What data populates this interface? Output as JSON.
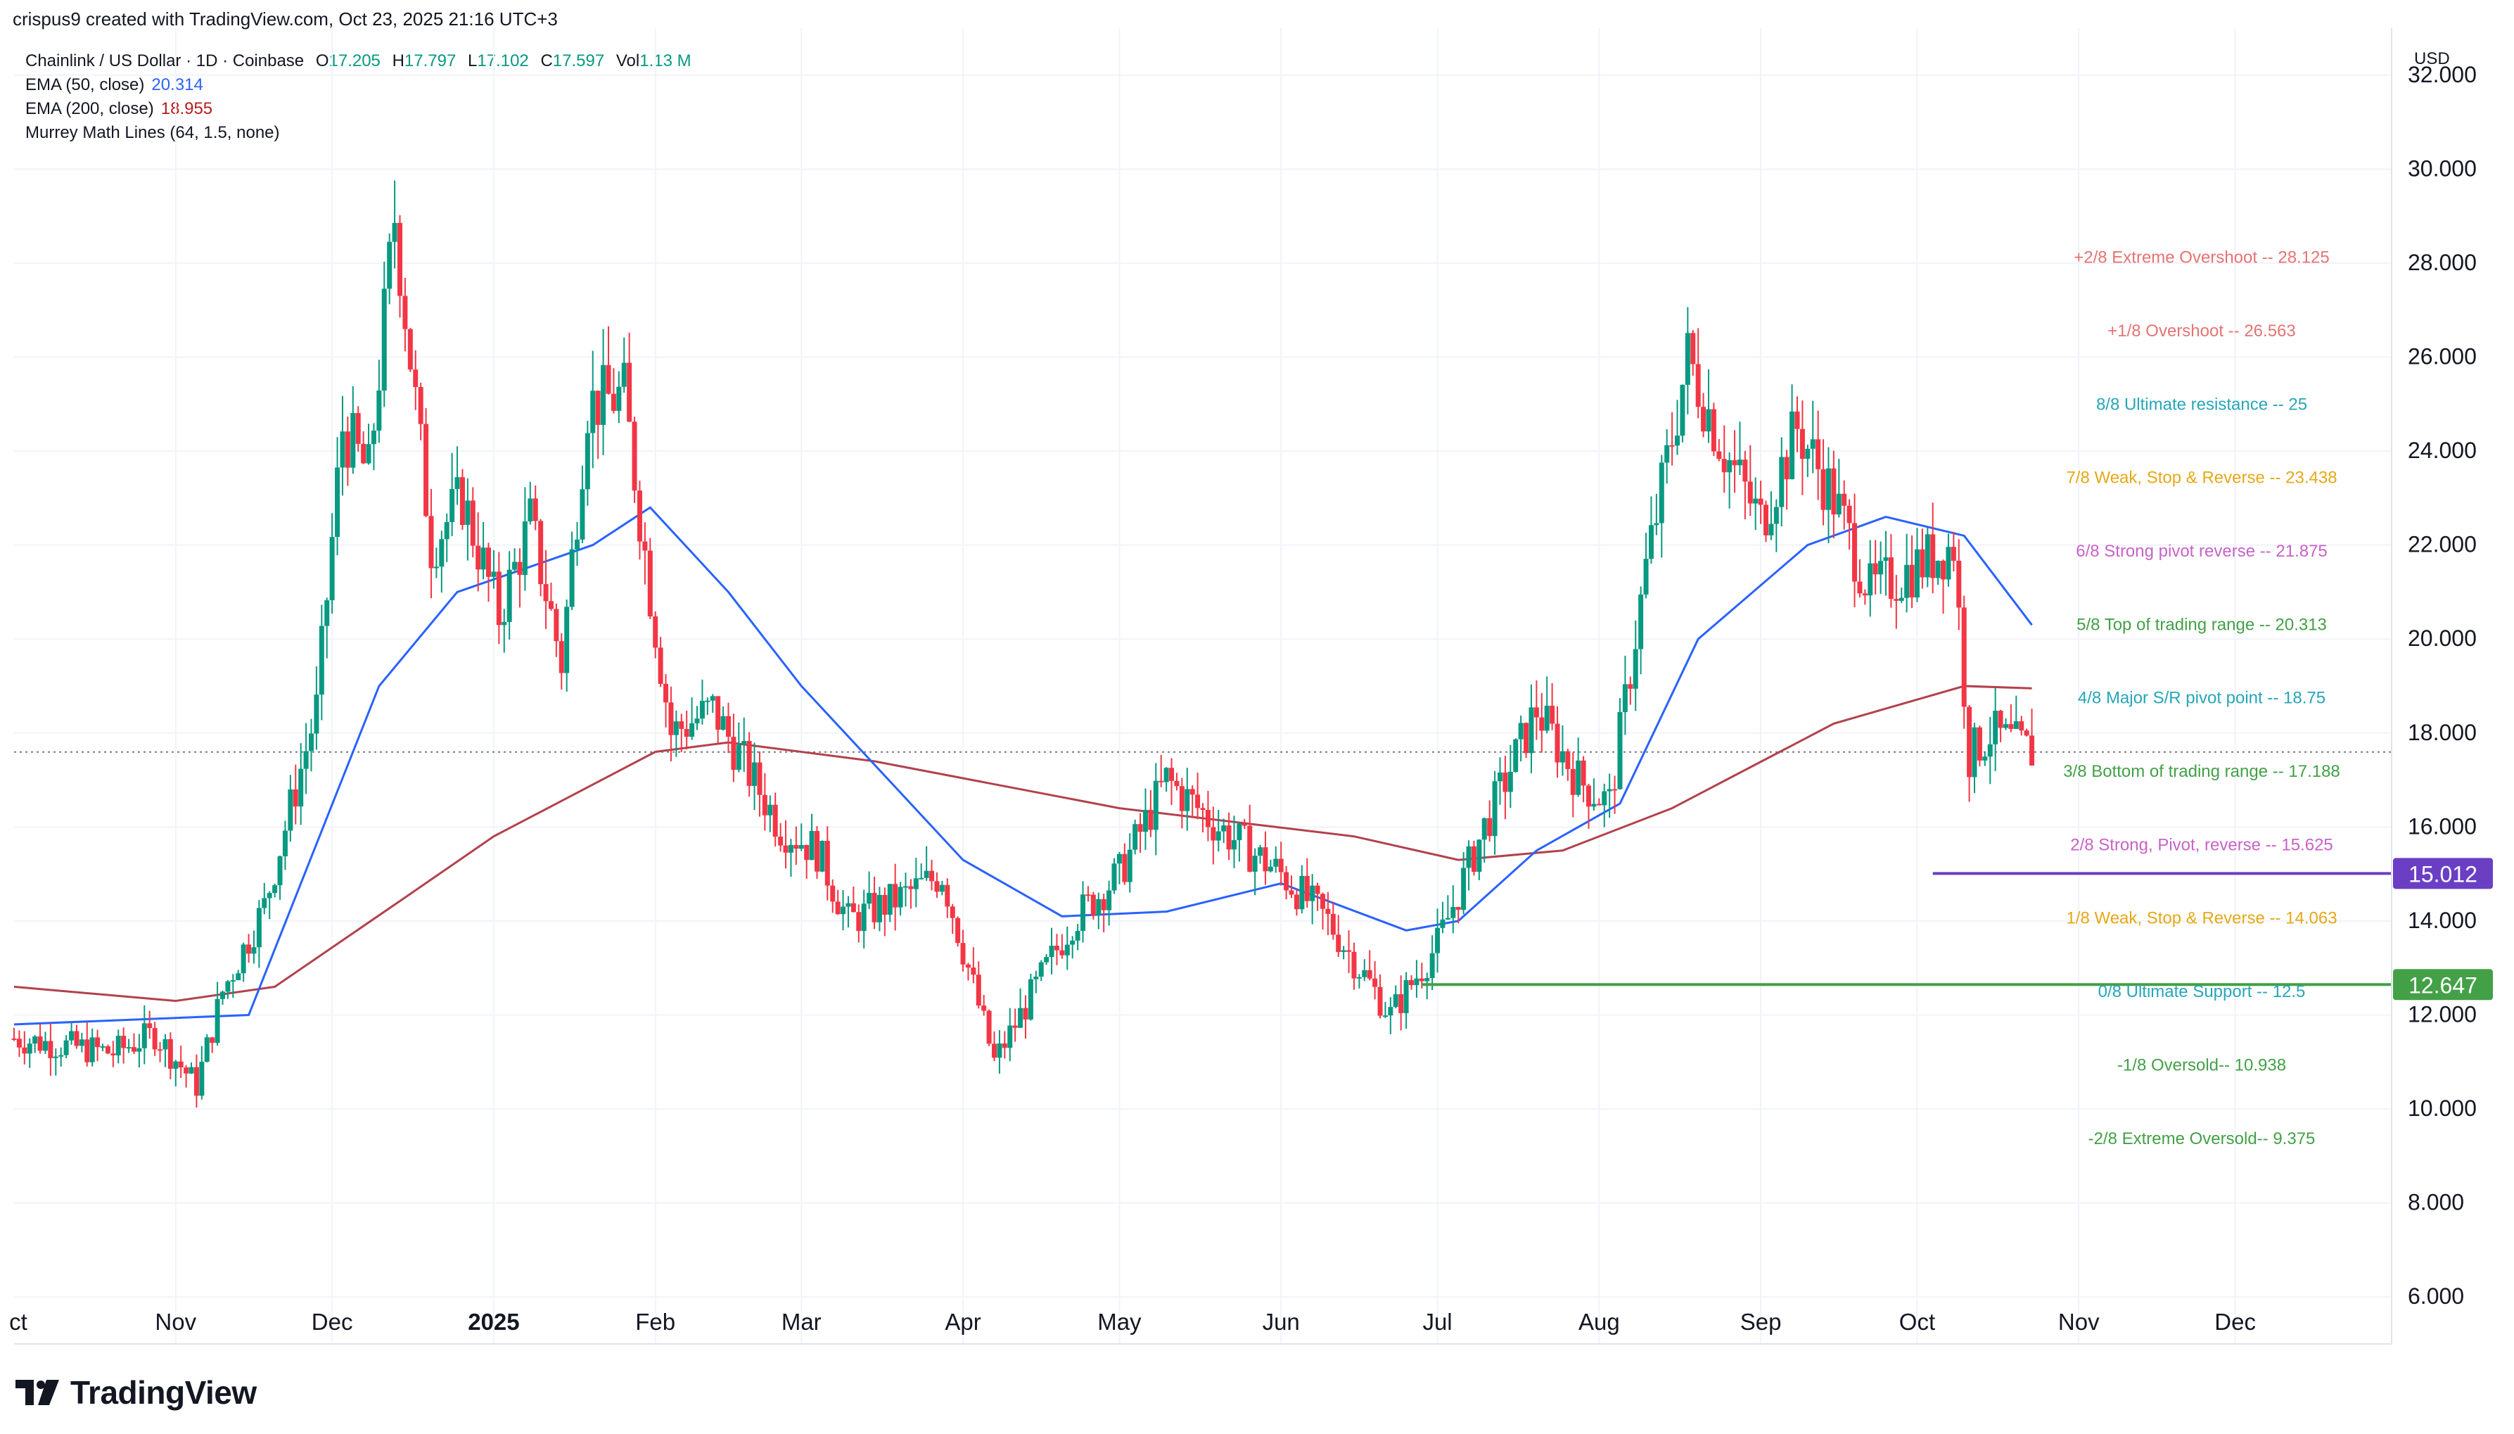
{
  "header": {
    "attribution": "crispus9 created with TradingView.com, Oct 23, 2025 21:16 UTC+3"
  },
  "legend": {
    "symbol": "Chainlink / US Dollar · 1D · Coinbase",
    "open_label": "O",
    "open": "17.205",
    "high_label": "H",
    "high": "17.797",
    "low_label": "L",
    "low": "17.102",
    "close_label": "C",
    "close": "17.597",
    "vol_label": "Vol",
    "vol": "1.13 M",
    "ema50_label": "EMA (50, close)",
    "ema50_value": "20.314",
    "ema200_label": "EMA (200, close)",
    "ema200_value": "18.955",
    "murrey_label": "Murrey Math Lines (64, 1.5, none)"
  },
  "currency": "USD",
  "brand": {
    "name": "TradingView"
  },
  "colors": {
    "up": "#089981",
    "down": "#f23645",
    "ema50": "#2962ff",
    "ema200": "#b2424c",
    "grid": "#f0f3fa"
  },
  "chart_data": {
    "type": "candlestick",
    "x_range": [
      "2024-10-01",
      "2025-12-31"
    ],
    "ylim": [
      5,
      33
    ],
    "current_price": 17.597,
    "y_ticks": [
      "6.000",
      "8.000",
      "10.000",
      "12.000",
      "14.000",
      "16.000",
      "18.000",
      "20.000",
      "22.000",
      "24.000",
      "26.000",
      "28.000",
      "30.000",
      "32.000"
    ],
    "x_ticks": [
      {
        "label": "ct",
        "date": "2024-10-01",
        "bold": false
      },
      {
        "label": "Nov",
        "date": "2024-11-01",
        "bold": false
      },
      {
        "label": "Dec",
        "date": "2024-12-01",
        "bold": false
      },
      {
        "label": "2025",
        "date": "2025-01-01",
        "bold": true
      },
      {
        "label": "Feb",
        "date": "2025-02-01",
        "bold": false
      },
      {
        "label": "Mar",
        "date": "2025-03-01",
        "bold": false
      },
      {
        "label": "Apr",
        "date": "2025-04-01",
        "bold": false
      },
      {
        "label": "May",
        "date": "2025-05-01",
        "bold": false
      },
      {
        "label": "Jun",
        "date": "2025-06-01",
        "bold": false
      },
      {
        "label": "Jul",
        "date": "2025-07-01",
        "bold": false
      },
      {
        "label": "Aug",
        "date": "2025-08-01",
        "bold": false
      },
      {
        "label": "Sep",
        "date": "2025-09-01",
        "bold": false
      },
      {
        "label": "Oct",
        "date": "2025-10-01",
        "bold": false
      },
      {
        "label": "Nov",
        "date": "2025-11-01",
        "bold": false
      },
      {
        "label": "Dec",
        "date": "2025-12-01",
        "bold": false
      }
    ],
    "close_path": [
      [
        "2024-10-01",
        11.5
      ],
      [
        "2024-10-20",
        11.2
      ],
      [
        "2024-10-28",
        11.6
      ],
      [
        "2024-11-05",
        10.5
      ],
      [
        "2024-11-10",
        12.5
      ],
      [
        "2024-11-18",
        14.3
      ],
      [
        "2024-11-28",
        18.5
      ],
      [
        "2024-12-03",
        24.5
      ],
      [
        "2024-12-08",
        23.5
      ],
      [
        "2024-12-13",
        29.0
      ],
      [
        "2024-12-20",
        22.0
      ],
      [
        "2024-12-26",
        23.0
      ],
      [
        "2025-01-02",
        20.5
      ],
      [
        "2025-01-08",
        22.5
      ],
      [
        "2025-01-14",
        19.5
      ],
      [
        "2025-01-19",
        25.0
      ],
      [
        "2025-01-26",
        25.2
      ],
      [
        "2025-01-31",
        21.0
      ],
      [
        "2025-02-04",
        18.0
      ],
      [
        "2025-02-12",
        18.5
      ],
      [
        "2025-02-25",
        16.0
      ],
      [
        "2025-03-04",
        15.5
      ],
      [
        "2025-03-10",
        14.0
      ],
      [
        "2025-03-20",
        14.5
      ],
      [
        "2025-03-28",
        15.0
      ],
      [
        "2025-04-07",
        11.0
      ],
      [
        "2025-04-22",
        14.0
      ],
      [
        "2025-05-01",
        15.0
      ],
      [
        "2025-05-10",
        17.0
      ],
      [
        "2025-05-20",
        16.0
      ],
      [
        "2025-06-01",
        15.0
      ],
      [
        "2025-06-10",
        14.0
      ],
      [
        "2025-06-22",
        12.0
      ],
      [
        "2025-07-01",
        13.5
      ],
      [
        "2025-07-10",
        16.0
      ],
      [
        "2025-07-20",
        18.5
      ],
      [
        "2025-07-28",
        17.0
      ],
      [
        "2025-08-03",
        16.5
      ],
      [
        "2025-08-10",
        21.5
      ],
      [
        "2025-08-18",
        26.0
      ],
      [
        "2025-08-25",
        24.0
      ],
      [
        "2025-09-01",
        22.5
      ],
      [
        "2025-09-08",
        24.5
      ],
      [
        "2025-09-15",
        23.0
      ],
      [
        "2025-09-22",
        21.0
      ],
      [
        "2025-09-30",
        21.5
      ],
      [
        "2025-10-08",
        22.0
      ],
      [
        "2025-10-11",
        17.5
      ],
      [
        "2025-10-15",
        18.0
      ],
      [
        "2025-10-23",
        17.6
      ]
    ],
    "ema50_path": [
      [
        "2024-10-01",
        11.8
      ],
      [
        "2024-11-15",
        12.0
      ],
      [
        "2024-12-10",
        19.0
      ],
      [
        "2024-12-25",
        21.0
      ],
      [
        "2025-01-20",
        22.0
      ],
      [
        "2025-01-31",
        22.8
      ],
      [
        "2025-02-15",
        21.0
      ],
      [
        "2025-03-01",
        19.0
      ],
      [
        "2025-04-01",
        15.3
      ],
      [
        "2025-04-20",
        14.1
      ],
      [
        "2025-05-10",
        14.2
      ],
      [
        "2025-06-01",
        14.8
      ],
      [
        "2025-06-25",
        13.8
      ],
      [
        "2025-07-05",
        14.0
      ],
      [
        "2025-07-20",
        15.5
      ],
      [
        "2025-08-05",
        16.5
      ],
      [
        "2025-08-20",
        20.0
      ],
      [
        "2025-09-10",
        22.0
      ],
      [
        "2025-09-25",
        22.6
      ],
      [
        "2025-10-10",
        22.2
      ],
      [
        "2025-10-23",
        20.3
      ]
    ],
    "ema200_path": [
      [
        "2024-10-01",
        12.6
      ],
      [
        "2024-11-01",
        12.3
      ],
      [
        "2024-11-20",
        12.6
      ],
      [
        "2024-12-15",
        14.5
      ],
      [
        "2025-01-01",
        15.8
      ],
      [
        "2025-02-01",
        17.6
      ],
      [
        "2025-02-15",
        17.8
      ],
      [
        "2025-03-15",
        17.4
      ],
      [
        "2025-05-01",
        16.4
      ],
      [
        "2025-06-15",
        15.8
      ],
      [
        "2025-07-05",
        15.3
      ],
      [
        "2025-07-25",
        15.5
      ],
      [
        "2025-08-15",
        16.4
      ],
      [
        "2025-09-15",
        18.2
      ],
      [
        "2025-10-10",
        19.0
      ],
      [
        "2025-10-23",
        18.95
      ]
    ],
    "murrey_lines": [
      {
        "label": "+2/8 Extreme Overshoot --  28.125",
        "value": 28.125,
        "color": "#e57373"
      },
      {
        "label": "+1/8 Overshoot --  26.563",
        "value": 26.563,
        "color": "#e57373"
      },
      {
        "label": "8/8 Ultimate resistance --  25",
        "value": 25.0,
        "color": "#26a6b8"
      },
      {
        "label": "7/8 Weak, Stop & Reverse --  23.438",
        "value": 23.438,
        "color": "#e6a817"
      },
      {
        "label": "6/8 Strong pivot reverse --  21.875",
        "value": 21.875,
        "color": "#c862c8"
      },
      {
        "label": "5/8 Top of trading range --  20.313",
        "value": 20.313,
        "color": "#43a047"
      },
      {
        "label": "4/8 Major S/R pivot point --  18.75",
        "value": 18.75,
        "color": "#26a6b8"
      },
      {
        "label": "3/8 Bottom of trading range --  17.188",
        "value": 17.188,
        "color": "#43a047"
      },
      {
        "label": "2/8 Strong, Pivot, reverse --  15.625",
        "value": 15.625,
        "color": "#c862c8"
      },
      {
        "label": "1/8 Weak, Stop & Reverse --  14.063",
        "value": 14.063,
        "color": "#e6a817"
      },
      {
        "label": "0/8 Ultimate Support --  12.5",
        "value": 12.5,
        "color": "#26a6b8"
      },
      {
        "label": "-1/8 Oversold--  10.938",
        "value": 10.938,
        "color": "#43a047"
      },
      {
        "label": "-2/8 Extreme Oversold--  9.375",
        "value": 9.375,
        "color": "#43a047"
      }
    ],
    "horizontal_levels": [
      {
        "label": "15.012",
        "value": 15.012,
        "color": "#6a3fc4",
        "from": "2025-10-04"
      },
      {
        "label": "12.647",
        "value": 12.647,
        "color": "#43a047",
        "from": "2025-06-28"
      }
    ]
  }
}
